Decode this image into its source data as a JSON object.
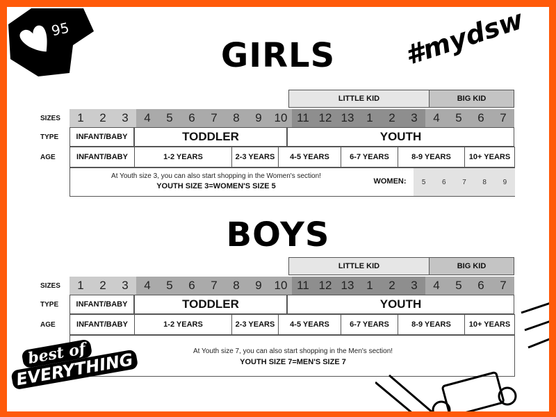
{
  "badge": {
    "icon": "heart-icon",
    "count": "95"
  },
  "logo_top": "#mydsw",
  "logo_bottom": {
    "line1": "best of",
    "line2": "EVERYTHING"
  },
  "colors": {
    "frame": "#ff5a0a",
    "size_light": "#cccccc",
    "size_mid": "#aaaaaa",
    "size_dark": "#8e8e8e",
    "little_kid": "#e6e6e6",
    "big_kid": "#c4c4c4",
    "women": "#e3e3e3"
  },
  "row_labels": {
    "sizes": "SIZES",
    "type": "TYPE",
    "age": "AGE"
  },
  "groups": {
    "little_kid": "LITTLE KID",
    "big_kid": "BIG KID"
  },
  "sizes": [
    "1",
    "2",
    "3",
    "4",
    "5",
    "6",
    "7",
    "8",
    "9",
    "10",
    "11",
    "12",
    "13",
    "1",
    "2",
    "3",
    "4",
    "5",
    "6",
    "7"
  ],
  "types": [
    "INFANT/BABY",
    "TODDLER",
    "YOUTH"
  ],
  "ages": [
    "INFANT/BABY",
    "1-2 YEARS",
    "2-3 YEARS",
    "4-5 YEARS",
    "6-7 YEARS",
    "8-9 YEARS",
    "10+ YEARS"
  ],
  "girls": {
    "title": "GIRLS",
    "note_line1": "At Youth size 3, you can also start shopping in the Women's section!",
    "note_line2": "YOUTH SIZE 3=WOMEN'S SIZE 5",
    "women_label": "WOMEN:",
    "women_sizes": [
      "5",
      "6",
      "7",
      "8",
      "9"
    ]
  },
  "boys": {
    "title": "BOYS",
    "note_line1": "At Youth size 7, you can also start shopping in the Men's section!",
    "note_line2": "YOUTH SIZE 7=MEN'S SIZE 7"
  }
}
